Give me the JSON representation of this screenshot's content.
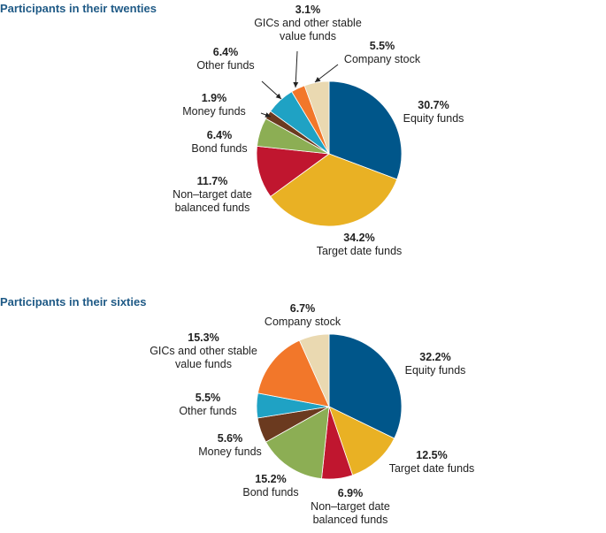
{
  "chart_data": [
    {
      "type": "pie",
      "title": "Participants in their twenties",
      "slices": [
        {
          "label": "Equity funds",
          "value": 30.7,
          "display": "30.7%",
          "color": "#00568a"
        },
        {
          "label": "Target date funds",
          "value": 34.2,
          "display": "34.2%",
          "color": "#e9b124"
        },
        {
          "label": "Non–target date balanced funds",
          "value": 11.7,
          "display": "11.7%",
          "color": "#c0162f"
        },
        {
          "label": "Bond funds",
          "value": 6.4,
          "display": "6.4%",
          "color": "#8cae54"
        },
        {
          "label": "Money funds",
          "value": 1.9,
          "display": "1.9%",
          "color": "#6b3a1f"
        },
        {
          "label": "Other funds",
          "value": 6.4,
          "display": "6.4%",
          "color": "#1fa2c4"
        },
        {
          "label": "GICs and other stable value funds",
          "value": 3.1,
          "display": "3.1%",
          "color": "#f2772a"
        },
        {
          "label": "Company stock",
          "value": 5.5,
          "display": "5.5%",
          "color": "#ead9b1"
        }
      ]
    },
    {
      "type": "pie",
      "title": "Participants in their sixties",
      "slices": [
        {
          "label": "Equity funds",
          "value": 32.2,
          "display": "32.2%",
          "color": "#00568a"
        },
        {
          "label": "Target date funds",
          "value": 12.5,
          "display": "12.5%",
          "color": "#e9b124"
        },
        {
          "label": "Non–target date balanced funds",
          "value": 6.9,
          "display": "6.9%",
          "color": "#c0162f"
        },
        {
          "label": "Bond funds",
          "value": 15.2,
          "display": "15.2%",
          "color": "#8cae54"
        },
        {
          "label": "Money funds",
          "value": 5.6,
          "display": "5.6%",
          "color": "#6b3a1f"
        },
        {
          "label": "Other funds",
          "value": 5.5,
          "display": "5.5%",
          "color": "#1fa2c4"
        },
        {
          "label": "GICs and other stable value funds",
          "value": 15.3,
          "display": "15.3%",
          "color": "#f2772a"
        },
        {
          "label": "Company stock",
          "value": 6.7,
          "display": "6.7%",
          "color": "#ead9b1"
        }
      ]
    }
  ],
  "labels": {
    "twenties": [
      {
        "pct": "30.7%",
        "lines": [
          "Equity funds"
        ]
      },
      {
        "pct": "34.2%",
        "lines": [
          "Target date funds"
        ]
      },
      {
        "pct": "11.7%",
        "lines": [
          "Non–target date",
          "balanced funds"
        ]
      },
      {
        "pct": "6.4%",
        "lines": [
          "Bond funds"
        ]
      },
      {
        "pct": "1.9%",
        "lines": [
          "Money funds"
        ]
      },
      {
        "pct": "6.4%",
        "lines": [
          "Other funds"
        ]
      },
      {
        "pct": "3.1%",
        "lines": [
          "GICs and other stable",
          "value funds"
        ]
      },
      {
        "pct": "5.5%",
        "lines": [
          "Company stock"
        ]
      }
    ],
    "sixties": [
      {
        "pct": "32.2%",
        "lines": [
          "Equity funds"
        ]
      },
      {
        "pct": "12.5%",
        "lines": [
          "Target date funds"
        ]
      },
      {
        "pct": "6.9%",
        "lines": [
          "Non–target date",
          "balanced funds"
        ]
      },
      {
        "pct": "15.2%",
        "lines": [
          "Bond funds"
        ]
      },
      {
        "pct": "5.6%",
        "lines": [
          "Money funds"
        ]
      },
      {
        "pct": "5.5%",
        "lines": [
          "Other funds"
        ]
      },
      {
        "pct": "15.3%",
        "lines": [
          "GICs and other stable",
          "value funds"
        ]
      },
      {
        "pct": "6.7%",
        "lines": [
          "Company stock"
        ]
      }
    ]
  }
}
